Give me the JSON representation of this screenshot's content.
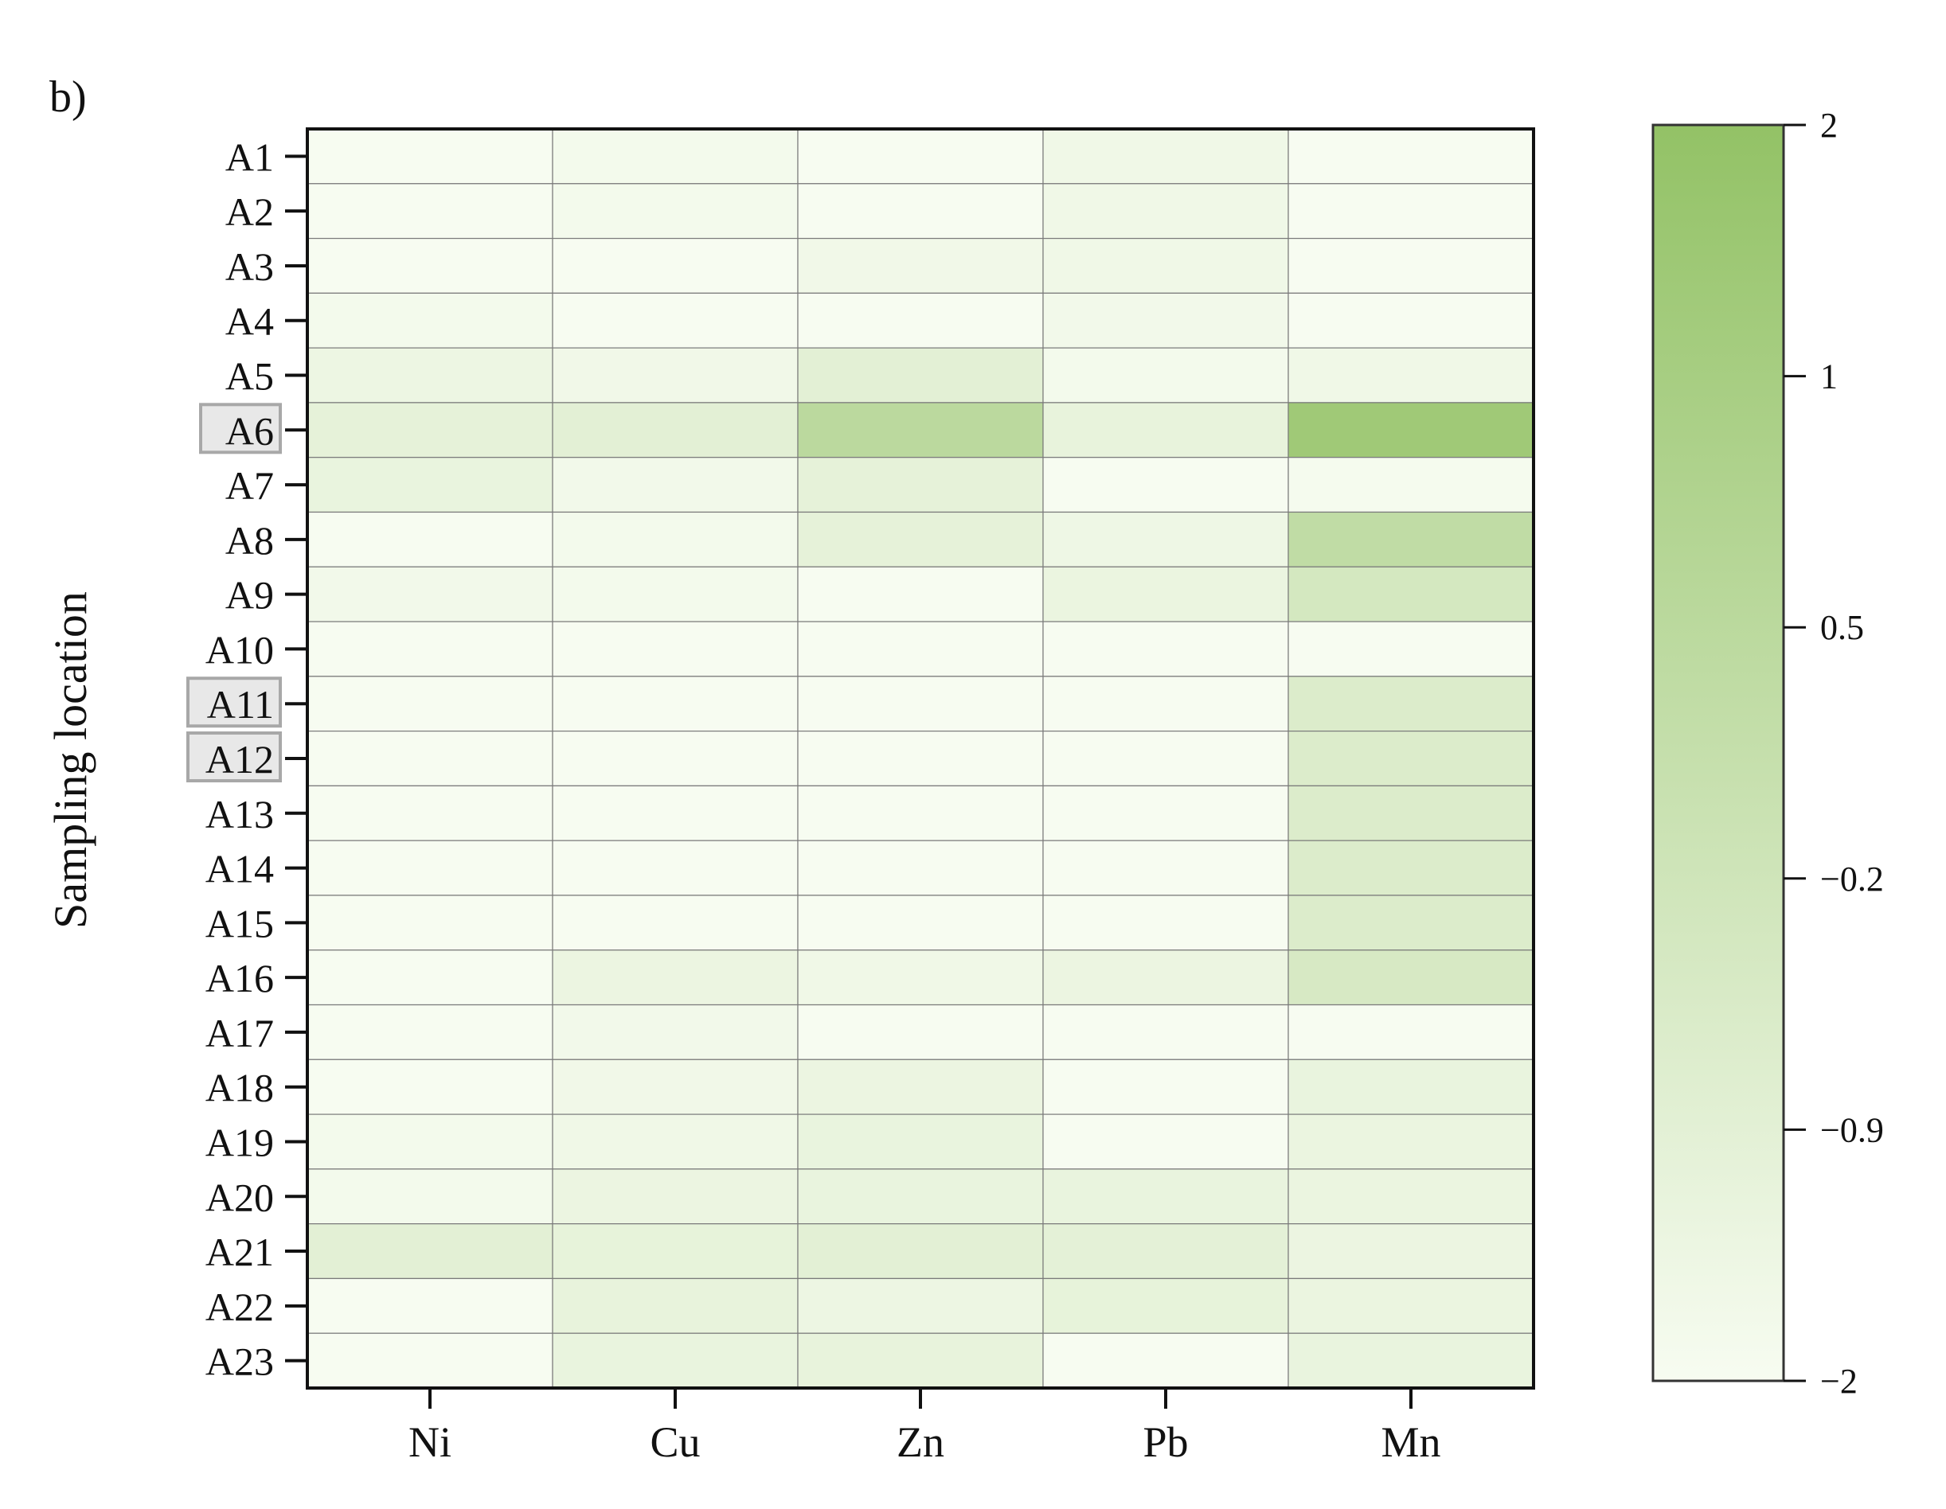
{
  "chart_data": {
    "type": "heatmap",
    "panel_label": "b)",
    "ylabel": "Sampling location",
    "xlabel": "",
    "x_categories": [
      "Ni",
      "Cu",
      "Zn",
      "Pb",
      "Mn"
    ],
    "y_categories": [
      "A1",
      "A2",
      "A3",
      "A4",
      "A5",
      "A6",
      "A7",
      "A8",
      "A9",
      "A10",
      "A11",
      "A12",
      "A13",
      "A14",
      "A15",
      "A16",
      "A17",
      "A18",
      "A19",
      "A20",
      "A21",
      "A22",
      "A23"
    ],
    "highlighted_rows": [
      "A6",
      "A11",
      "A12"
    ],
    "values": [
      [
        -2.0,
        -1.85,
        -2.0,
        -1.7,
        -2.0
      ],
      [
        -2.0,
        -1.85,
        -2.0,
        -1.7,
        -2.0
      ],
      [
        -2.0,
        -2.0,
        -1.75,
        -1.7,
        -2.0
      ],
      [
        -1.85,
        -2.0,
        -2.0,
        -1.8,
        -2.0
      ],
      [
        -1.6,
        -1.75,
        -1.2,
        -1.85,
        -1.7
      ],
      [
        -1.3,
        -1.2,
        0.4,
        -1.4,
        1.5
      ],
      [
        -1.45,
        -1.8,
        -1.3,
        -2.0,
        -1.9
      ],
      [
        -2.0,
        -1.85,
        -1.3,
        -1.65,
        0.2
      ],
      [
        -1.8,
        -1.85,
        -2.0,
        -1.5,
        -0.6
      ],
      [
        -2.0,
        -2.0,
        -2.0,
        -2.0,
        -2.0
      ],
      [
        -2.0,
        -2.0,
        -2.0,
        -2.0,
        -0.9
      ],
      [
        -2.0,
        -2.0,
        -2.0,
        -2.0,
        -0.9
      ],
      [
        -2.0,
        -2.0,
        -2.0,
        -2.0,
        -0.9
      ],
      [
        -2.0,
        -2.0,
        -2.0,
        -2.0,
        -0.9
      ],
      [
        -2.0,
        -2.0,
        -2.0,
        -2.0,
        -0.9
      ],
      [
        -2.0,
        -1.55,
        -1.7,
        -1.55,
        -0.7
      ],
      [
        -2.0,
        -1.8,
        -2.0,
        -2.0,
        -2.0
      ],
      [
        -2.0,
        -1.75,
        -1.55,
        -2.0,
        -1.45
      ],
      [
        -1.85,
        -1.7,
        -1.45,
        -2.0,
        -1.5
      ],
      [
        -1.85,
        -1.55,
        -1.45,
        -1.45,
        -1.5
      ],
      [
        -1.2,
        -1.35,
        -1.2,
        -1.25,
        -1.55
      ],
      [
        -2.0,
        -1.4,
        -1.6,
        -1.35,
        -1.5
      ],
      [
        -2.0,
        -1.45,
        -1.4,
        -2.0,
        -1.45
      ]
    ],
    "colorbar": {
      "ticks": [
        2,
        1,
        0.5,
        -0.2,
        -0.9,
        -2
      ],
      "tick_labels": [
        "2",
        "1",
        "0.5",
        "−0.2",
        "−0.9",
        "−2"
      ],
      "min": -2,
      "max": 2,
      "color_low": "#f7fcf1",
      "color_high": "#93c266"
    },
    "colors": {
      "cell_border": "#7a7a7a",
      "frame": "#111111",
      "highlight_fill": "#e8e8e8",
      "highlight_stroke": "#a8a8a8"
    }
  }
}
